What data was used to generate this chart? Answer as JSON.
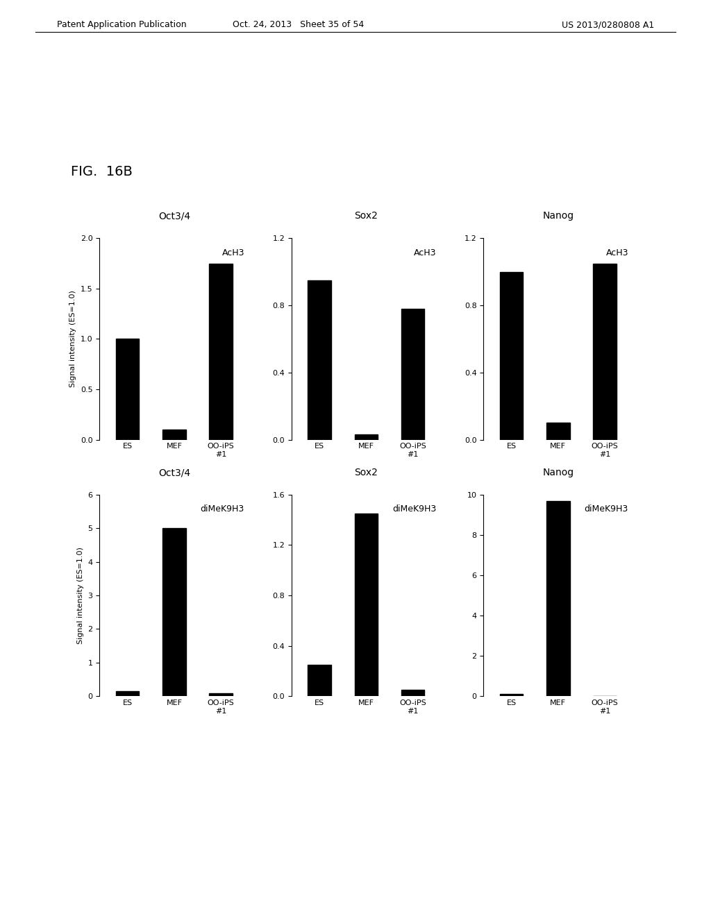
{
  "fig_label": "FIG.  16B",
  "header_left": "Patent Application Publication",
  "header_center": "Oct. 24, 2013   Sheet 35 of 54",
  "header_right": "US 2013/0280808 A1",
  "ylabel": "Signal intensity (ES=1.0)",
  "categories": [
    "ES",
    "MEF",
    "OO-iPS\n#1"
  ],
  "subplots": [
    {
      "title": "Oct3/4",
      "subtitle": "AcH3",
      "ylim": [
        0,
        2
      ],
      "yticks": [
        0,
        0.5,
        1,
        1.5,
        2
      ],
      "values": [
        1.0,
        0.1,
        1.75
      ]
    },
    {
      "title": "Sox2",
      "subtitle": "AcH3",
      "ylim": [
        0,
        1.2
      ],
      "yticks": [
        0,
        0.4,
        0.8,
        1.2
      ],
      "values": [
        0.95,
        0.03,
        0.78
      ]
    },
    {
      "title": "Nanog",
      "subtitle": "AcH3",
      "ylim": [
        0,
        1.2
      ],
      "yticks": [
        0,
        0.4,
        0.8,
        1.2
      ],
      "values": [
        1.0,
        0.1,
        1.05
      ]
    },
    {
      "title": "Oct3/4",
      "subtitle": "diMeK9H3",
      "ylim": [
        0,
        6
      ],
      "yticks": [
        0,
        1,
        2,
        3,
        4,
        5,
        6
      ],
      "values": [
        0.15,
        5.0,
        0.08
      ]
    },
    {
      "title": "Sox2",
      "subtitle": "diMeK9H3",
      "ylim": [
        0,
        1.6
      ],
      "yticks": [
        0,
        0.4,
        0.8,
        1.2,
        1.6
      ],
      "values": [
        0.25,
        1.45,
        0.05
      ]
    },
    {
      "title": "Nanog",
      "subtitle": "diMeK9H3",
      "ylim": [
        0,
        10
      ],
      "yticks": [
        0,
        2,
        4,
        6,
        8,
        10
      ],
      "values": [
        0.12,
        9.7,
        0.0
      ]
    }
  ],
  "bar_color": "#000000",
  "bg_color": "#ffffff",
  "bar_width": 0.5,
  "font_size": 9,
  "title_font_size": 10
}
